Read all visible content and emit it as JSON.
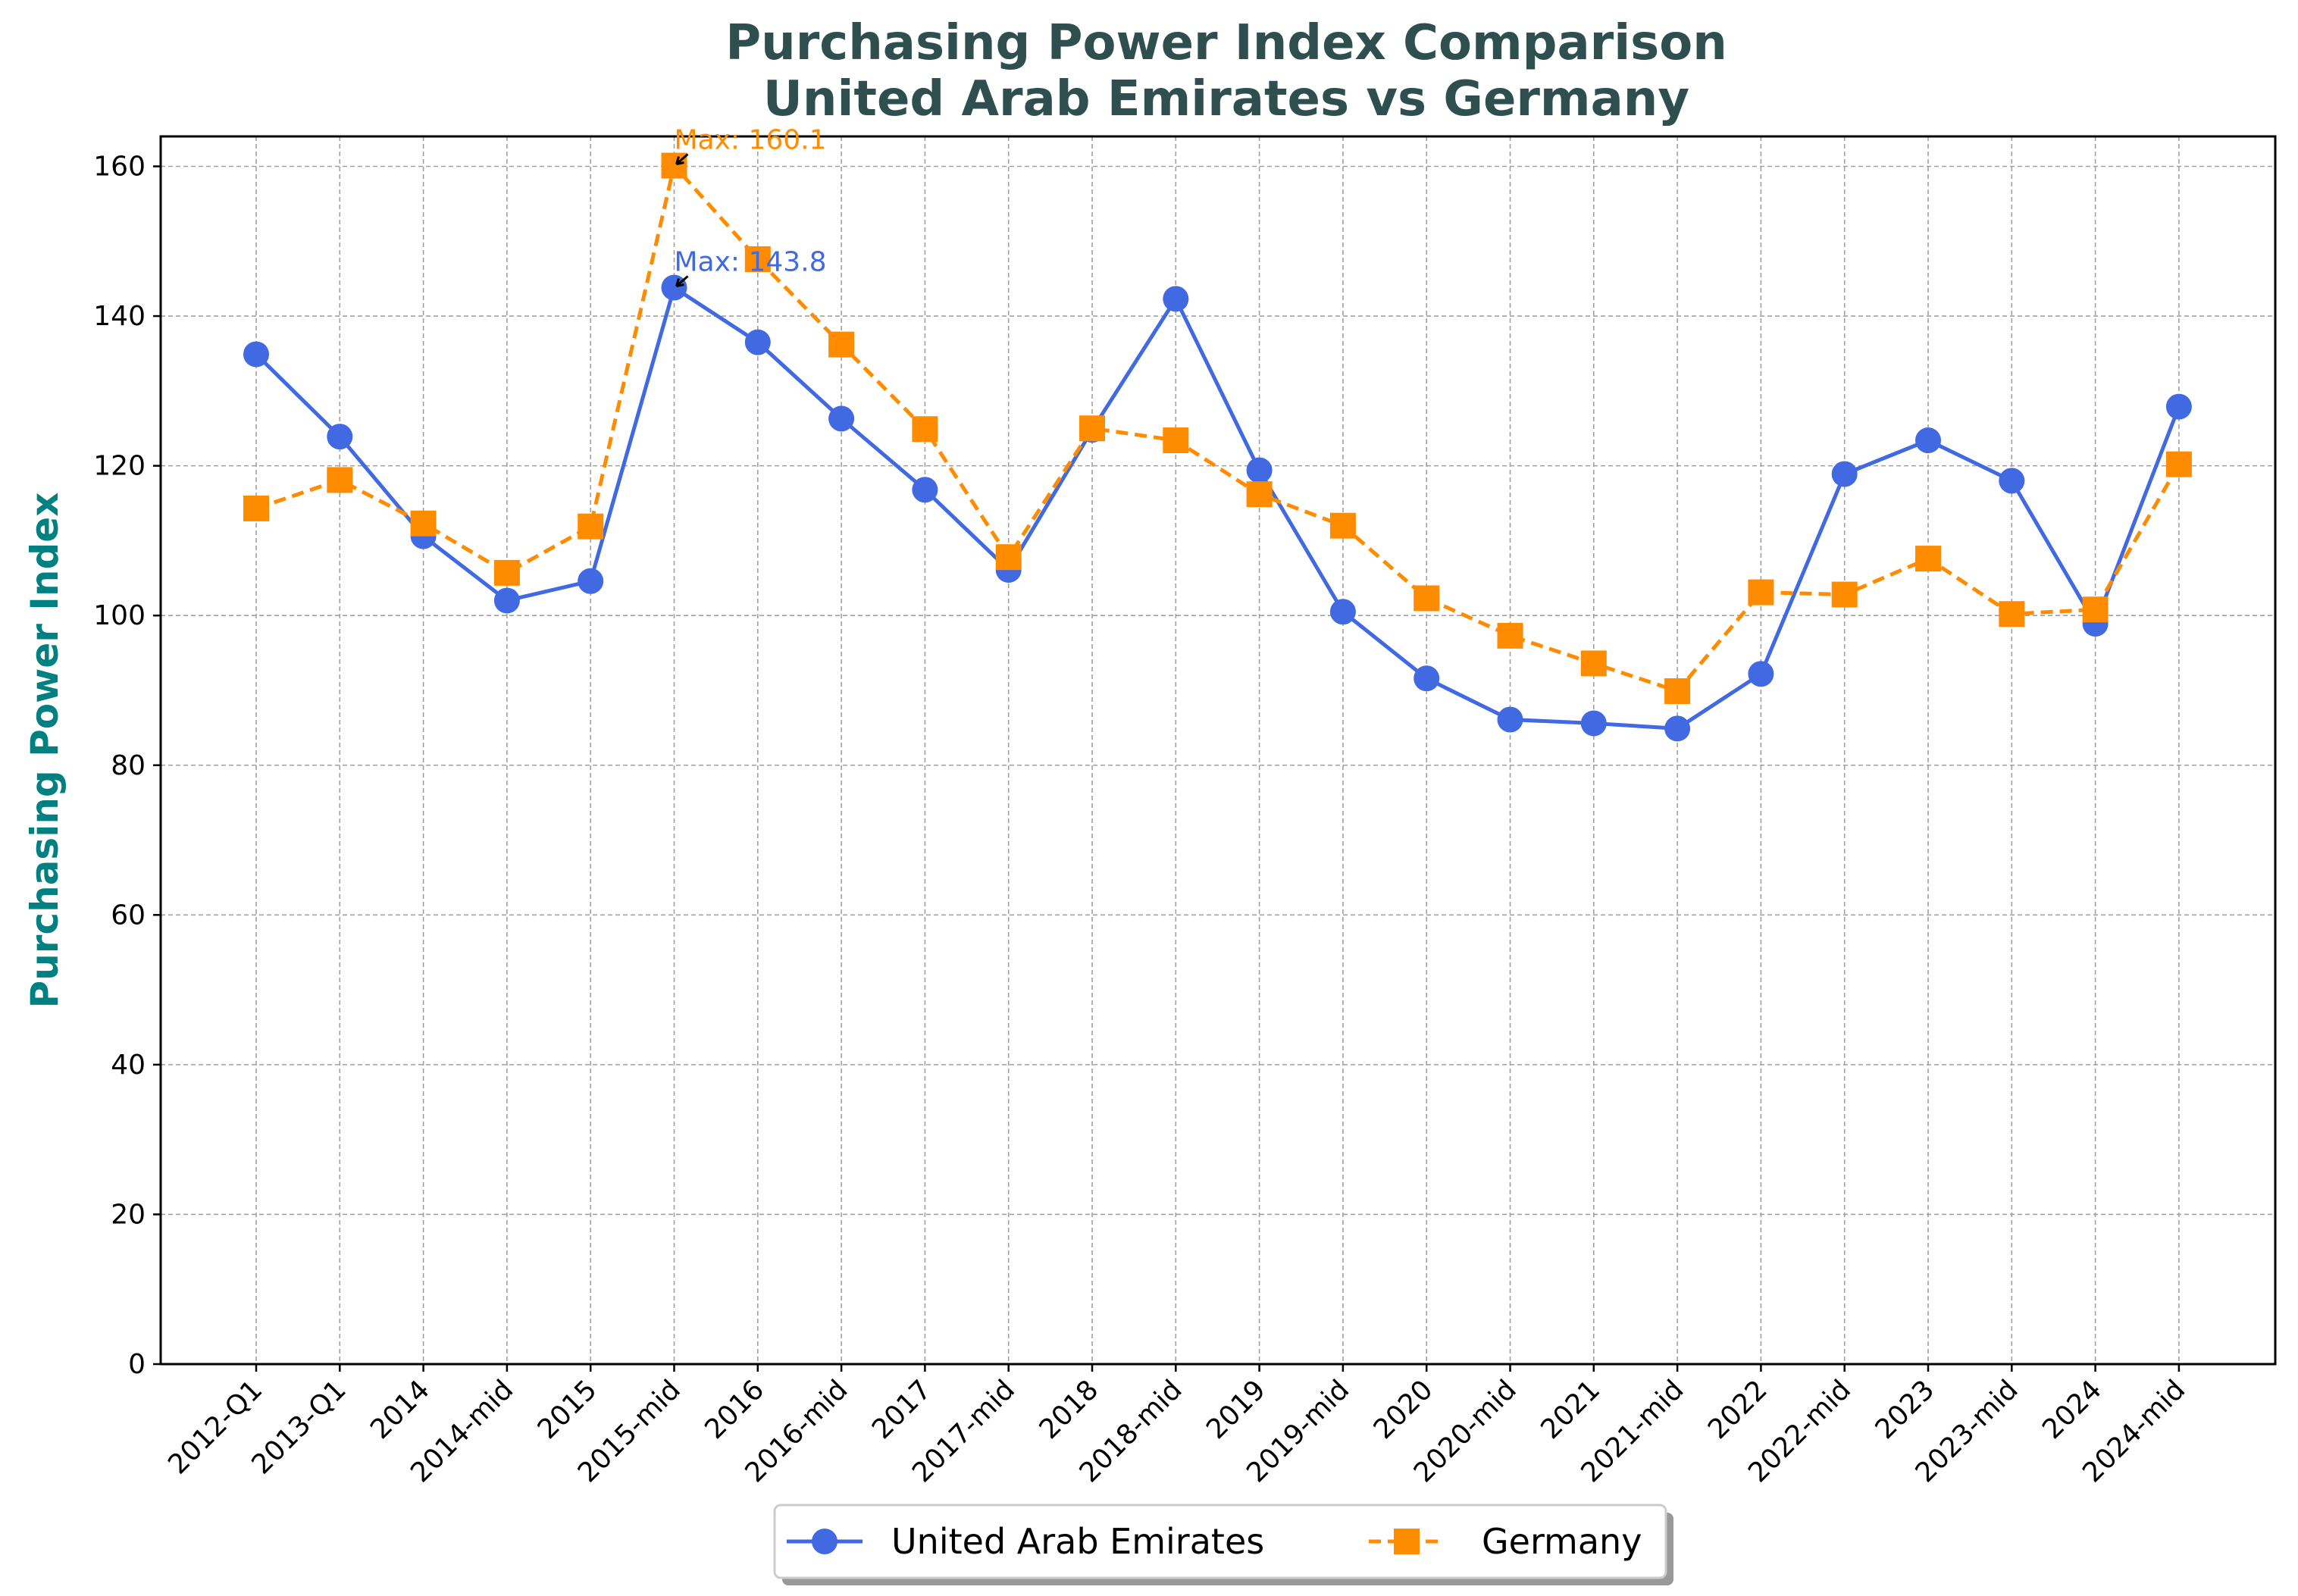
{
  "colors": {
    "title": "#2F4F4F",
    "ylabel": "#008080",
    "uae": "#4169E1",
    "germany": "#FF8C00",
    "grid": "#A0A0A0"
  },
  "chart_data": {
    "type": "line",
    "title": "Purchasing Power Index Comparison",
    "subtitle": "United Arab Emirates vs Germany",
    "ylabel": "Purchasing Power Index",
    "ylim": [
      0,
      164
    ],
    "yticks": [
      "0",
      "20",
      "40",
      "60",
      "80",
      "100",
      "120",
      "140",
      "160"
    ],
    "grid": true,
    "legend_position": "bottom-center",
    "categories": [
      "2012-Q1",
      "2013-Q1",
      "2014",
      "2014-mid",
      "2015",
      "2015-mid",
      "2016",
      "2016-mid",
      "2017",
      "2017-mid",
      "2018",
      "2018-mid",
      "2019",
      "2019-mid",
      "2020",
      "2020-mid",
      "2021",
      "2021-mid",
      "2022",
      "2022-mid",
      "2023",
      "2023-mid",
      "2024",
      "2024-mid"
    ],
    "series": [
      {
        "name": "United Arab Emirates",
        "color": "#4169E1",
        "marker": "circle",
        "line": "solid",
        "values": [
          134.9,
          123.9,
          110.6,
          102.0,
          104.6,
          143.8,
          136.5,
          126.3,
          116.8,
          106.1,
          124.8,
          142.3,
          119.4,
          100.5,
          91.6,
          86.1,
          85.6,
          84.9,
          92.2,
          118.9,
          123.4,
          118.0,
          98.9,
          127.9
        ]
      },
      {
        "name": "Germany",
        "color": "#FF8C00",
        "marker": "square",
        "line": "dashed",
        "values": [
          114.3,
          118.1,
          112.3,
          105.7,
          111.9,
          160.1,
          147.6,
          136.2,
          124.9,
          107.8,
          125.0,
          123.4,
          116.2,
          112.0,
          102.3,
          97.3,
          93.6,
          89.9,
          103.1,
          102.8,
          107.6,
          100.2,
          100.8,
          120.2
        ]
      }
    ],
    "annotations": [
      {
        "text": "Max: 143.8",
        "category": "2015-mid",
        "value": 143.8,
        "color": "#4169E1"
      },
      {
        "text": "Max: 160.1",
        "category": "2015-mid",
        "value": 160.1,
        "color": "#FF8C00"
      }
    ]
  }
}
